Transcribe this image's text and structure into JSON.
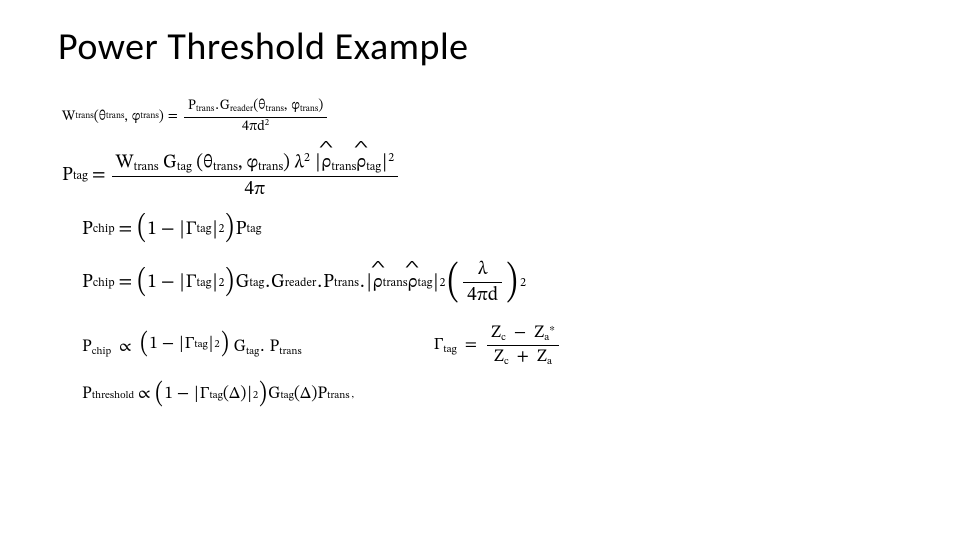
{
  "title": "Power Threshold Example",
  "colors": {
    "text": "#000000",
    "background": "#ffffff"
  },
  "fonts": {
    "title_family": "Calibri",
    "title_size_pt": 38,
    "math_family": "Cambria Math",
    "math_size_pt": 19
  },
  "symbols": {
    "theta": "θ",
    "phi": "φ",
    "lambda": "λ",
    "pi": "π",
    "Gamma": "Γ",
    "rho": "ρ",
    "propto": "∝",
    "Delta": "Δ",
    "abs": "|",
    "eq": "=",
    "minus": "−",
    "plus": "+",
    "star": "∗",
    "hat": "̂",
    "lparen": "(",
    "rparen": ")",
    "comma": ",",
    "dot": ".",
    "one": "1"
  },
  "vars": {
    "W": "W",
    "P": "P",
    "G": "G",
    "d": "d",
    "Z": "Z",
    "trans": "trans",
    "reader": "reader",
    "tag": "tag",
    "chip": "chip",
    "threshold": "threshold",
    "c": "c",
    "a": "a"
  },
  "nums": {
    "two": "2",
    "four": "4",
    "fourpi": "4π"
  },
  "eq1": {
    "lhs_prefix": "W",
    "lhs_sub": "trans",
    "arg1_sym": "θ",
    "arg1_sub": "trans",
    "arg2_sym": "φ",
    "arg2_sub": "trans",
    "num_P": "P",
    "num_P_sub": "trans",
    "num_G": "G",
    "num_G_sub": "reader",
    "den": "4πd",
    "den_exp": "2"
  },
  "eq2": {
    "lhs": "P",
    "lhs_sub": "tag",
    "num_W": "W",
    "num_W_sub": "trans",
    "num_G": "G",
    "num_G_sub": "tag",
    "lambda": "λ",
    "lambda_exp": "2",
    "rho1_sub": "trans",
    "rho2_sub": "tag",
    "den": "4π"
  },
  "eq3": {
    "lhs": "P",
    "lhs_sub": "chip",
    "one": "1",
    "Gamma_sub": "tag",
    "exp": "2",
    "tail_P": "P",
    "tail_P_sub": "tag"
  },
  "eq4": {
    "lhs": "P",
    "lhs_sub": "chip",
    "Gtag": "G",
    "Gtag_sub": "tag",
    "Greader": "G",
    "Greader_sub": "reader",
    "Ptrans": "P",
    "Ptrans_sub": "trans",
    "rho1_sub": "trans",
    "rho2_sub": "tag",
    "frac_num": "λ",
    "frac_den": "4πd",
    "outer_exp": "2"
  },
  "eq5": {
    "lhs": "P",
    "lhs_sub": "chip",
    "Gtag": "G",
    "Gtag_sub": "tag",
    "Ptrans": "P",
    "Ptrans_sub": "trans"
  },
  "eq6": {
    "lhs": "Γ",
    "lhs_sub": "tag",
    "Zc": "Z",
    "Zc_sub": "c",
    "Za": "Z",
    "Za_sub": "a",
    "star": "∗"
  },
  "eq7": {
    "lhs": "P",
    "lhs_sub": "threshold",
    "Gamma_sub": "tag",
    "Gtag": "G",
    "Gtag_sub": "tag",
    "Ptrans": "P",
    "Ptrans_sub": "trans",
    "trailing": ","
  }
}
